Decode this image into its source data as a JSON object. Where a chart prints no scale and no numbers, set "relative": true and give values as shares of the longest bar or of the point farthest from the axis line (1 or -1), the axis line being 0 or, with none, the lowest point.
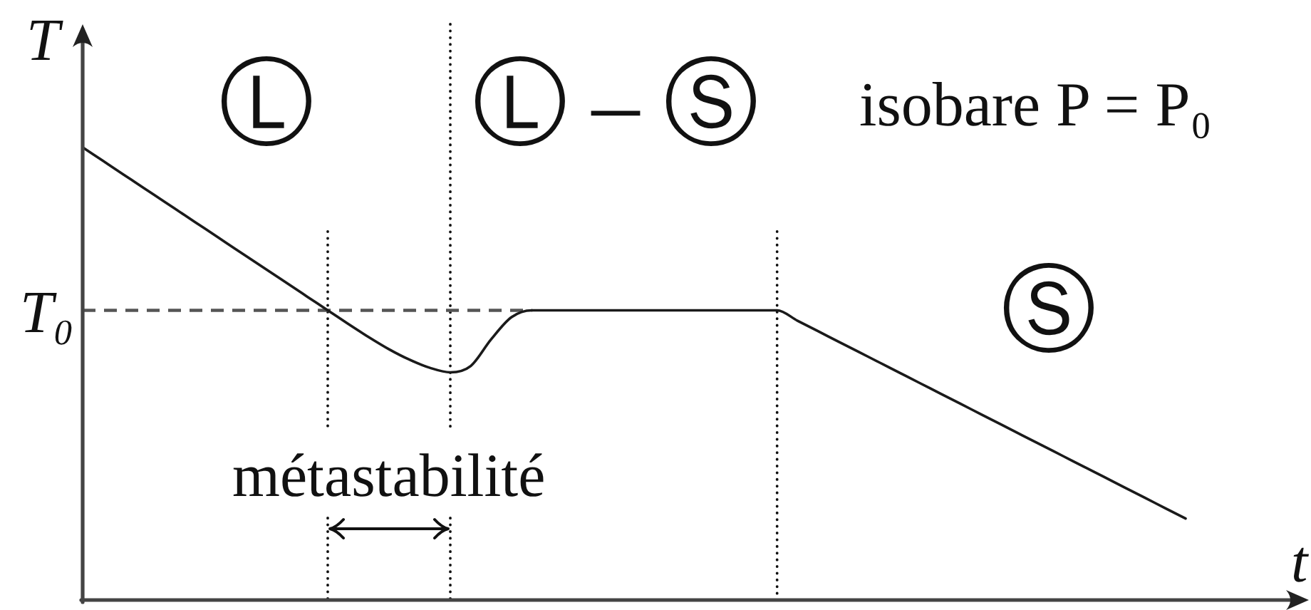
{
  "chart_data": {
    "type": "line",
    "relative": true,
    "color": "#1a1a1a",
    "xlabel": "t",
    "ylabel": "T",
    "grid": "x",
    "categories": [
      null,
      null,
      null,
      null,
      null,
      null,
      null,
      null,
      null,
      null,
      null,
      null,
      null,
      null,
      null,
      null,
      null,
      null,
      null,
      null,
      null,
      null,
      null,
      null,
      null,
      null,
      null,
      null,
      null,
      null,
      null,
      null,
      null,
      null,
      null,
      null,
      null,
      null,
      null,
      null,
      null,
      null,
      null,
      null,
      null,
      null,
      null,
      null,
      null,
      null,
      null,
      null,
      null,
      null,
      null,
      null,
      null,
      null,
      null,
      null,
      null
    ],
    "values": [
      1,
      0.97,
      0.94,
      0.91,
      0.88,
      0.85,
      0.82,
      0.79,
      0.76,
      0.73,
      0.7,
      0.67,
      0.64,
      0.61,
      0.581,
      0.554,
      0.531,
      0.513,
      0.503,
      0.517,
      0.576,
      0.625,
      0.64,
      0.64,
      0.64,
      0.64,
      0.64,
      0.64,
      0.64,
      0.64,
      0.64,
      0.64,
      0.64,
      0.64,
      0.64,
      0.617,
      0.594,
      0.571,
      0.548,
      0.525,
      0.502,
      0.479,
      0.456,
      0.433,
      0.41,
      0.387,
      0.364,
      0.341,
      0.318,
      0.295,
      0.272,
      0.249,
      0.226,
      0.203,
      0.18,
      null,
      null,
      null,
      null,
      null,
      null
    ],
    "ref_lines": [
      {
        "axis": "y",
        "value": 0.64,
        "label": "T₀",
        "line_style": "dashed",
        "color": "#555555"
      }
    ],
    "annotations": [
      "Ⓛ",
      "Ⓛ – Ⓢ",
      "Ⓢ",
      "isobare P = P₀",
      "métastabilité"
    ]
  }
}
